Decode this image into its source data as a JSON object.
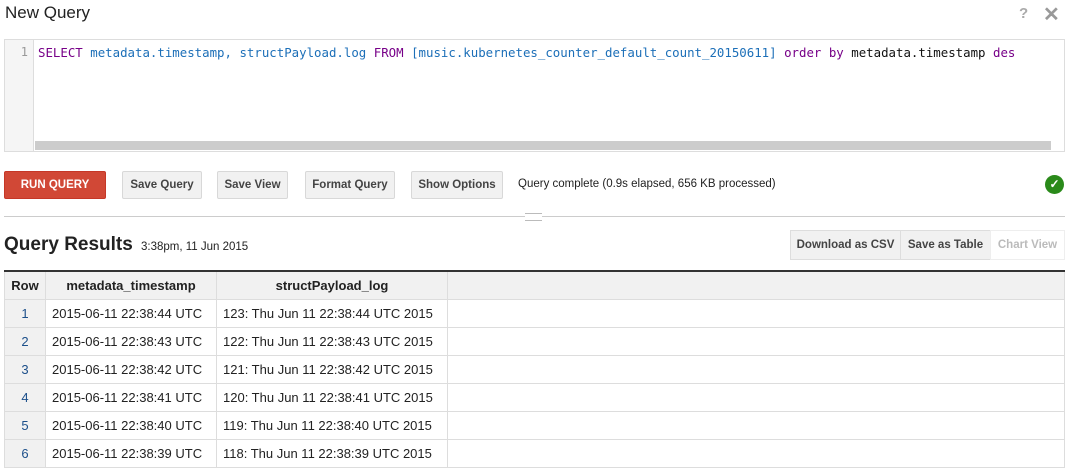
{
  "dialog": {
    "title": "New Query",
    "help_icon": "?",
    "close_icon": "✕"
  },
  "editor": {
    "line_number": "1",
    "tokens": [
      {
        "t": "SELECT",
        "c": "kw"
      },
      {
        "t": " "
      },
      {
        "t": "metadata.timestamp,",
        "c": "id"
      },
      {
        "t": " "
      },
      {
        "t": "structPayload.log",
        "c": "id"
      },
      {
        "t": " "
      },
      {
        "t": "FROM",
        "c": "kw"
      },
      {
        "t": " "
      },
      {
        "t": "[music.kubernetes_counter_default_count_20150611]",
        "c": "id"
      },
      {
        "t": " "
      },
      {
        "t": "order",
        "c": "kw"
      },
      {
        "t": " "
      },
      {
        "t": "by",
        "c": "kw"
      },
      {
        "t": " "
      },
      {
        "t": "metadata.timestamp",
        "c": "pl"
      },
      {
        "t": " "
      },
      {
        "t": "des",
        "c": "kw"
      }
    ]
  },
  "toolbar": {
    "run": "RUN QUERY",
    "save_query": "Save Query",
    "save_view": "Save View",
    "format_query": "Format Query",
    "show_options": "Show Options",
    "status": "Query complete (0.9s elapsed, 656 KB processed)",
    "status_color": "#2a8a1a"
  },
  "results": {
    "title": "Query Results",
    "time": "3:38pm, 11 Jun 2015",
    "download_csv": "Download as CSV",
    "save_table": "Save as Table",
    "chart_view": "Chart View",
    "columns": [
      "Row",
      "metadata_timestamp",
      "structPayload_log"
    ],
    "rows": [
      [
        "1",
        "2015-06-11 22:38:44 UTC",
        "123: Thu Jun 11 22:38:44 UTC 2015"
      ],
      [
        "2",
        "2015-06-11 22:38:43 UTC",
        "122: Thu Jun 11 22:38:43 UTC 2015"
      ],
      [
        "3",
        "2015-06-11 22:38:42 UTC",
        "121: Thu Jun 11 22:38:42 UTC 2015"
      ],
      [
        "4",
        "2015-06-11 22:38:41 UTC",
        "120: Thu Jun 11 22:38:41 UTC 2015"
      ],
      [
        "5",
        "2015-06-11 22:38:40 UTC",
        "119: Thu Jun 11 22:38:40 UTC 2015"
      ],
      [
        "6",
        "2015-06-11 22:38:39 UTC",
        "118: Thu Jun 11 22:38:39 UTC 2015"
      ]
    ]
  }
}
